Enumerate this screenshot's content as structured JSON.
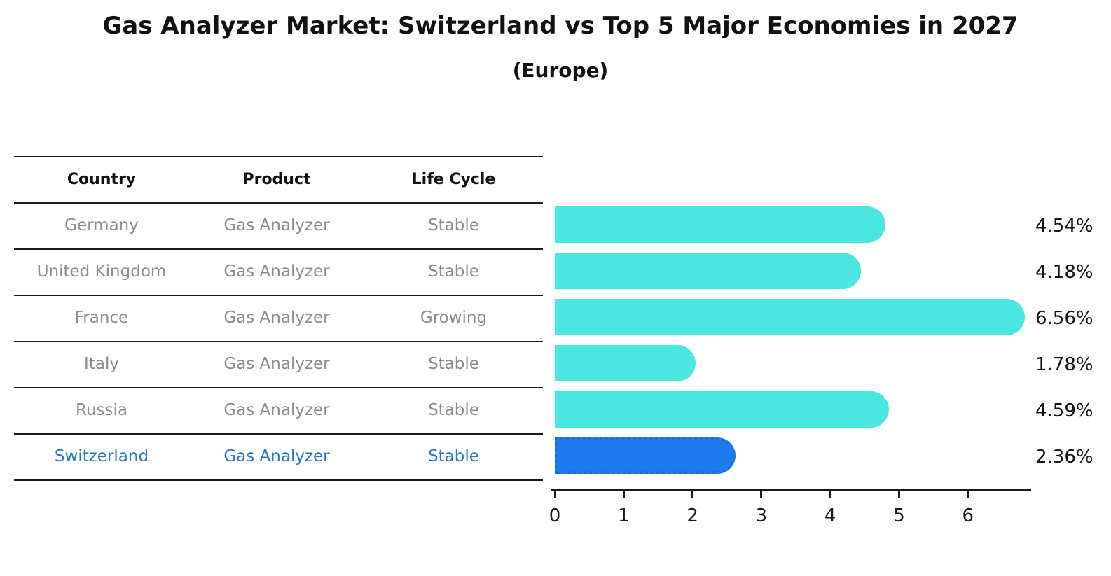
{
  "title": "Gas Analyzer Market: Switzerland vs Top 5 Major Economies in 2027",
  "subtitle": "(Europe)",
  "table": {
    "headers": [
      "Country",
      "Product",
      "Life Cycle"
    ]
  },
  "rows": [
    {
      "country": "Germany",
      "product": "Gas Analyzer",
      "life_cycle": "Stable",
      "value_label": "4.54%",
      "highlight": false
    },
    {
      "country": "United Kingdom",
      "product": "Gas Analyzer",
      "life_cycle": "Stable",
      "value_label": "4.18%",
      "highlight": false
    },
    {
      "country": "France",
      "product": "Gas Analyzer",
      "life_cycle": "Growing",
      "value_label": "6.56%",
      "highlight": false
    },
    {
      "country": "Italy",
      "product": "Gas Analyzer",
      "life_cycle": "Stable",
      "value_label": "1.78%",
      "highlight": false
    },
    {
      "country": "Russia",
      "product": "Gas Analyzer",
      "life_cycle": "Stable",
      "value_label": "4.59%",
      "highlight": false
    },
    {
      "country": "Switzerland",
      "product": "Gas Analyzer",
      "life_cycle": "Stable",
      "value_label": "2.36%",
      "highlight": true
    }
  ],
  "chart_data": {
    "type": "bar",
    "orientation": "horizontal",
    "title": "Gas Analyzer Market: Switzerland vs Top 5 Major Economies in 2027 (Europe)",
    "categories": [
      "Germany",
      "United Kingdom",
      "France",
      "Italy",
      "Russia",
      "Switzerland"
    ],
    "values": [
      4.54,
      4.18,
      6.56,
      1.78,
      4.59,
      2.36
    ],
    "value_labels": [
      "4.54%",
      "4.18%",
      "6.56%",
      "1.78%",
      "4.59%",
      "2.36%"
    ],
    "x_ticks": [
      0,
      1,
      2,
      3,
      4,
      5,
      6
    ],
    "xlim": [
      0,
      6.92
    ],
    "grid": false,
    "legend": false,
    "highlight_index": 5
  },
  "colors": {
    "bar": "#4ae7e1",
    "highlight_bar": "#1e7bee",
    "highlight_border": "#146fe0",
    "highlight_text": "#2776c8",
    "row_text": "#8c8c8c",
    "heading_text": "#111111",
    "axis": "#1a1a1a"
  }
}
